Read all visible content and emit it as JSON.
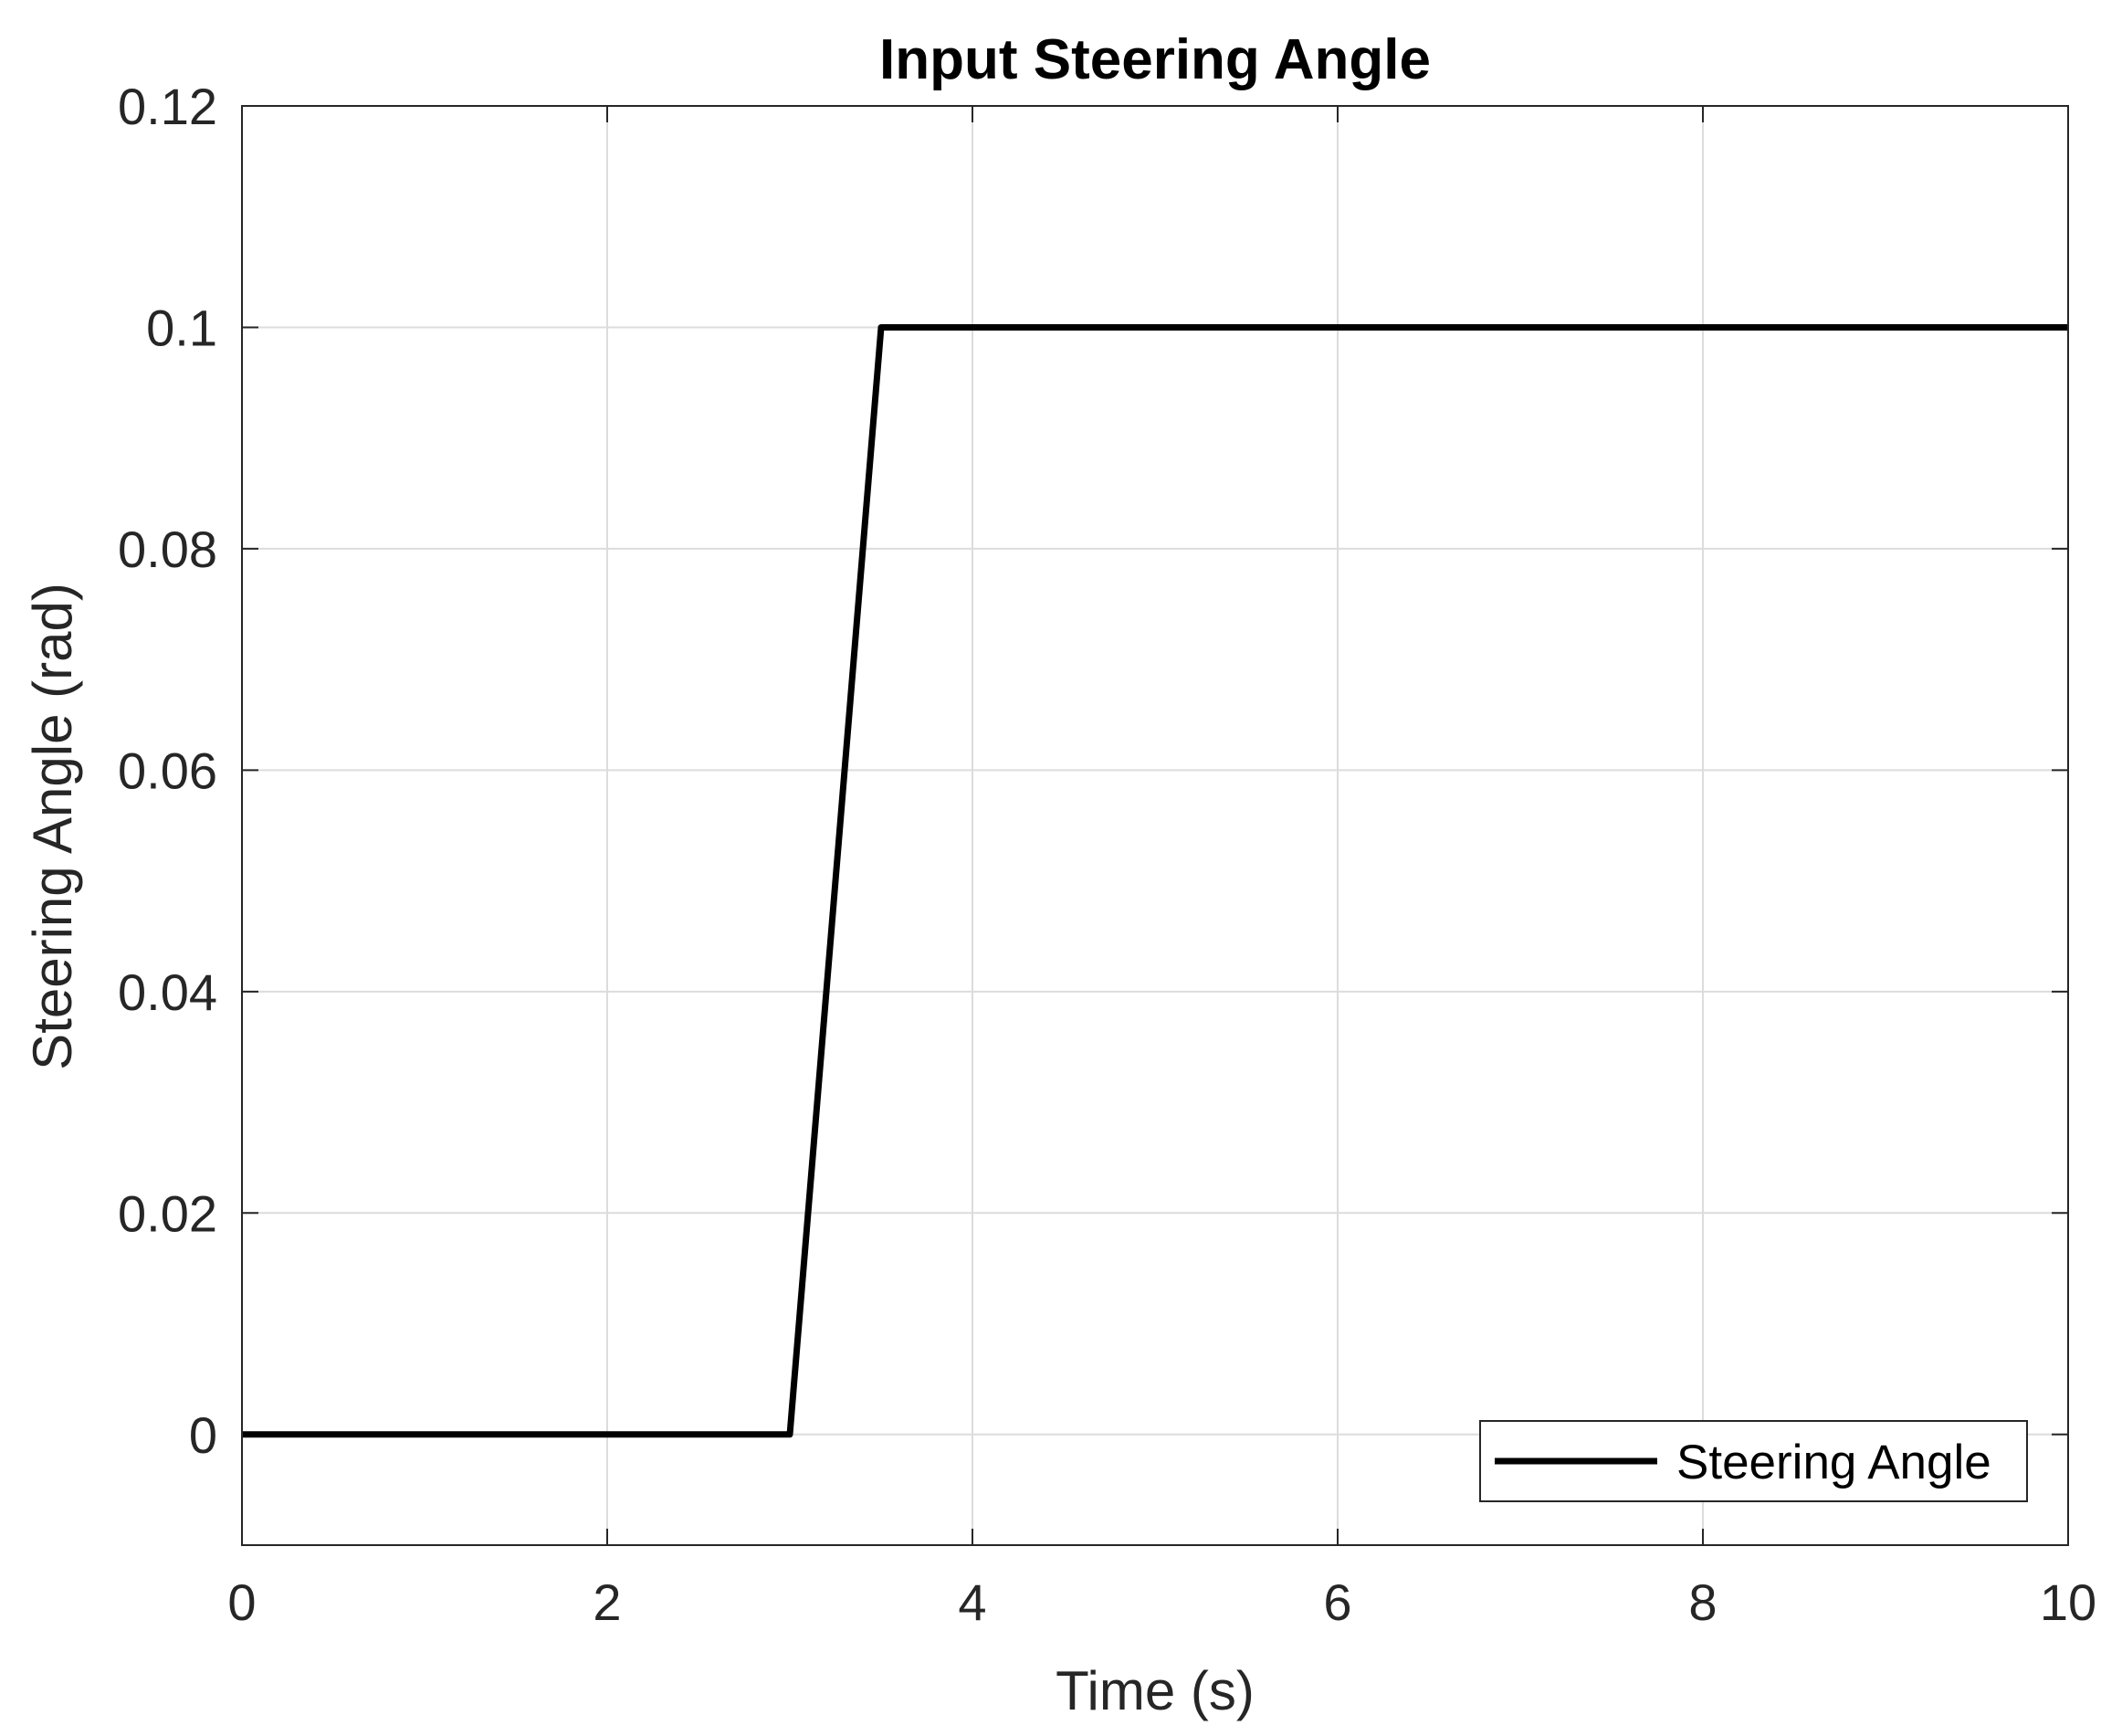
{
  "chart_data": {
    "type": "line",
    "title": "Input Steering Angle",
    "xlabel": "Time (s)",
    "ylabel": "Steering Angle (rad)",
    "xlim": [
      0,
      10
    ],
    "ylim": [
      -0.01,
      0.12
    ],
    "xticks": [
      0,
      2,
      4,
      6,
      8,
      10
    ],
    "xtick_labels": [
      "0",
      "2",
      "4",
      "6",
      "8",
      "10"
    ],
    "yticks": [
      0,
      0.02,
      0.04,
      0.06,
      0.08,
      0.1,
      0.12
    ],
    "ytick_labels": [
      "0",
      "0.02",
      "0.04",
      "0.06",
      "0.08",
      "0.1",
      "0.12"
    ],
    "grid": true,
    "legend_position": "bottom-right",
    "series": [
      {
        "name": "Steering Angle",
        "color": "#000000",
        "x": [
          0,
          3,
          3.5,
          10
        ],
        "y": [
          0,
          0,
          0.1,
          0.1
        ]
      }
    ]
  }
}
